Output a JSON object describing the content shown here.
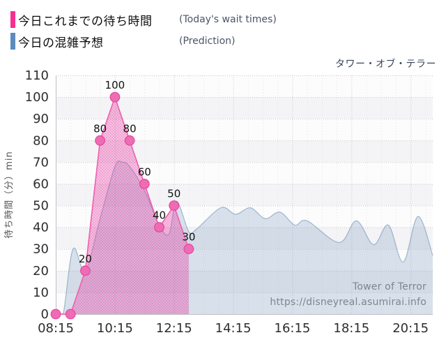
{
  "legend": {
    "items": [
      {
        "label_jp": "今日これまでの待ち時間",
        "label_en": "(Today's wait times)",
        "color": "#f72e93"
      },
      {
        "label_jp": "今日の混雑予想",
        "label_en": "(Prediction)",
        "color": "#5b8bbf"
      }
    ]
  },
  "watermark": {
    "line1": "Tower of Terror",
    "line2": "https://disneyreal.asumirai.info"
  },
  "chart_data": {
    "type": "area",
    "title": "タワー・オブ・テラー",
    "xlabel": "",
    "ylabel": "待ち時間（分）min",
    "ylim": [
      0,
      110
    ],
    "ytick_step": 10,
    "xticks": [
      "08:15",
      "10:15",
      "12:15",
      "14:15",
      "16:15",
      "18:15",
      "20:15"
    ],
    "x_start": "08:15",
    "x_end": "21:00",
    "grid": true,
    "legend_position": "top-left",
    "series": [
      {
        "name": "今日これまでの待ち時間",
        "name_en": "(Today's wait times)",
        "type": "line+area",
        "smooth": false,
        "color": "#f72e93",
        "line_color": "#ef5fae",
        "fill": "rgba(239,63,164,0.30)",
        "dot_texture_color": "rgba(214,30,140,0.32)",
        "marker_fill": "#ee6cb3",
        "marker_stroke": "#e6459f",
        "show_labels": true,
        "points": [
          [
            "08:15",
            0
          ],
          [
            "08:45",
            0
          ],
          [
            "09:15",
            20
          ],
          [
            "09:45",
            80
          ],
          [
            "10:15",
            100
          ],
          [
            "10:45",
            80
          ],
          [
            "11:15",
            60
          ],
          [
            "11:45",
            40
          ],
          [
            "12:15",
            50
          ],
          [
            "12:45",
            30
          ]
        ]
      },
      {
        "name": "今日の混雑予想",
        "name_en": "(Prediction)",
        "type": "area",
        "smooth": true,
        "color": "#5b8bbf",
        "line_color": "rgba(104,142,180,0.55)",
        "fill": "rgba(104,142,180,0.24)",
        "show_labels": false,
        "points": [
          [
            "08:15",
            0
          ],
          [
            "08:30",
            0
          ],
          [
            "08:50",
            30
          ],
          [
            "09:15",
            20
          ],
          [
            "09:45",
            44
          ],
          [
            "10:15",
            68
          ],
          [
            "10:30",
            70
          ],
          [
            "10:45",
            68
          ],
          [
            "11:15",
            57
          ],
          [
            "11:45",
            41
          ],
          [
            "12:05",
            37
          ],
          [
            "12:20",
            52
          ],
          [
            "12:45",
            38
          ],
          [
            "13:00",
            39
          ],
          [
            "13:50",
            49
          ],
          [
            "14:20",
            46
          ],
          [
            "14:50",
            49
          ],
          [
            "15:20",
            44
          ],
          [
            "15:50",
            47
          ],
          [
            "16:20",
            41
          ],
          [
            "16:45",
            43
          ],
          [
            "17:50",
            33
          ],
          [
            "18:25",
            43
          ],
          [
            "19:00",
            32
          ],
          [
            "19:30",
            41
          ],
          [
            "20:00",
            24
          ],
          [
            "20:30",
            45
          ],
          [
            "21:00",
            27
          ]
        ]
      }
    ],
    "axis_style": {
      "tick_color": "#2d2d2d",
      "grid_color": "#c9c9cd",
      "minor_grid_color": "#e3e3e8",
      "band_color": "#f4f4f6",
      "band_alt_color": "#fcfcfd",
      "axis_line_color": "#bfbfc5",
      "ylabel_color": "#555555",
      "point_label_color": "#111111"
    }
  }
}
